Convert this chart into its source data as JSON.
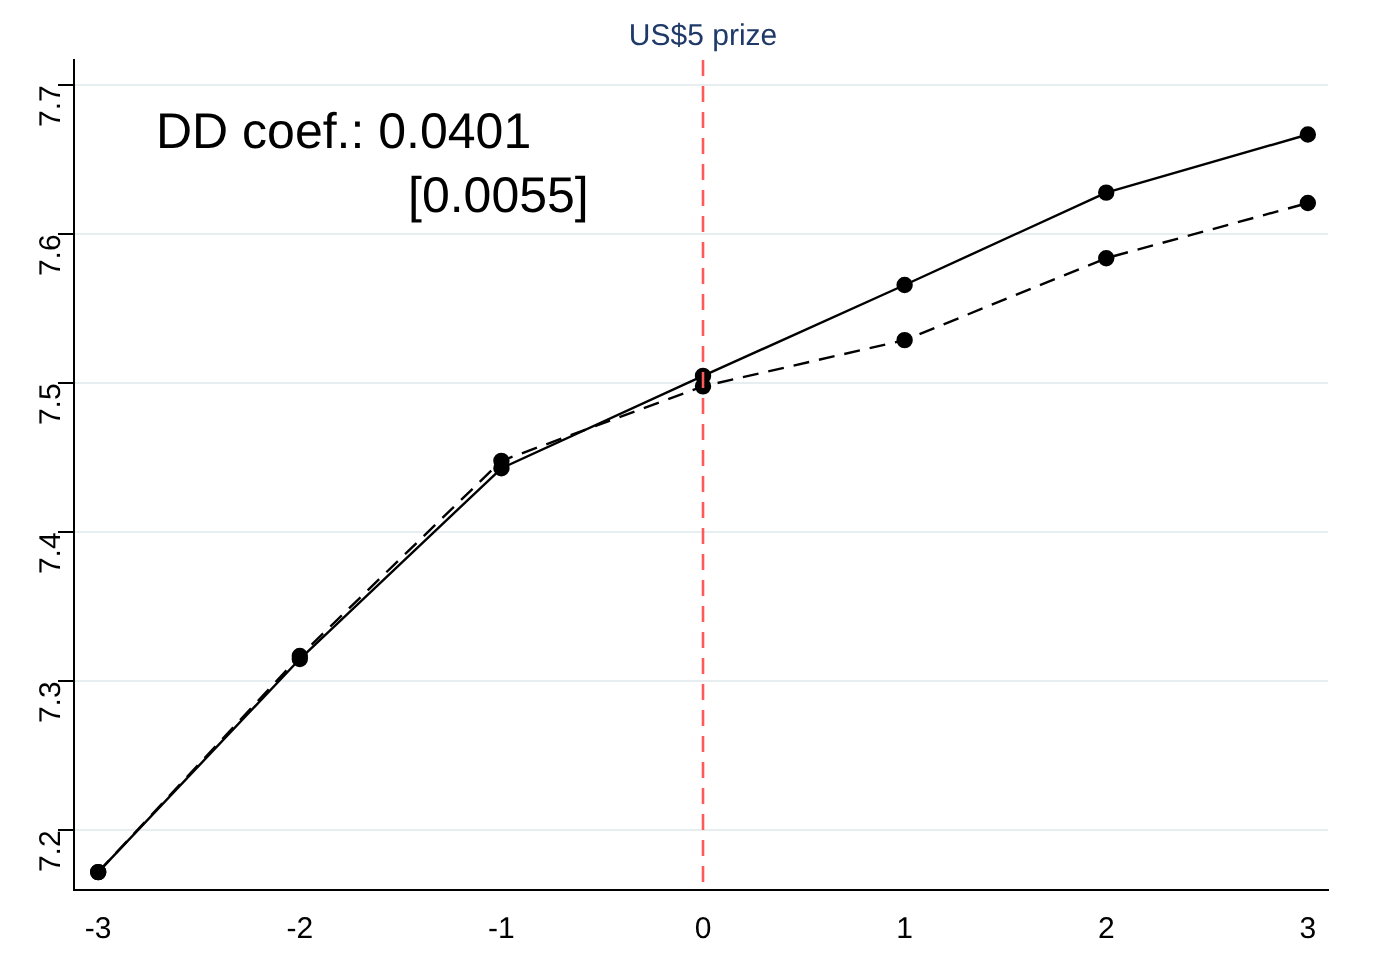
{
  "chart_data": {
    "type": "line",
    "x": [
      -3,
      -2,
      -1,
      0,
      1,
      2,
      3
    ],
    "series": [
      {
        "color": "#000000",
        "line_style": "solid",
        "values": [
          7.172,
          7.315,
          7.443,
          7.505,
          7.566,
          7.628,
          7.667
        ]
      },
      {
        "color": "#000000",
        "line_style": "dashed",
        "values": [
          7.172,
          7.317,
          7.448,
          7.498,
          7.529,
          7.584,
          7.621
        ]
      }
    ],
    "xlim": [
      -3.12,
      3.1
    ],
    "xticks": [
      -3,
      -2,
      -1,
      0,
      1,
      2,
      3
    ],
    "ylim": [
      7.16,
      7.717
    ],
    "yticks": [
      7.2,
      7.3,
      7.4,
      7.5,
      7.6,
      7.7
    ],
    "grid": "y",
    "marker": "circle",
    "legend": false,
    "ref_lines": [
      {
        "axis": "x",
        "value": 0,
        "label": "US$5 prize",
        "color": "#ff5a5a",
        "line_style": "dashed"
      }
    ],
    "annotations": [
      "DD coef.: 0.0401",
      "[0.0055]"
    ]
  }
}
